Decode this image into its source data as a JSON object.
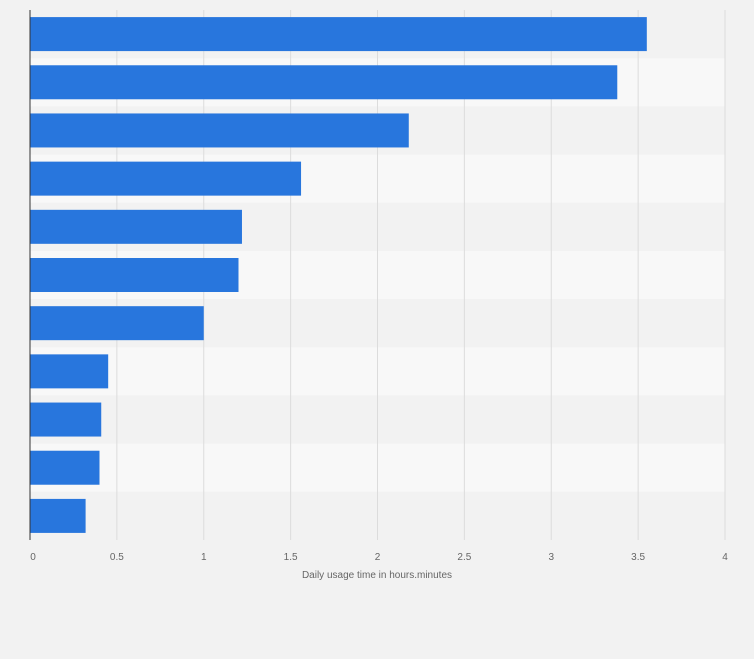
{
  "chart_data": {
    "type": "bar",
    "orientation": "horizontal",
    "title": "",
    "categories": [
      "",
      "",
      "",
      "",
      "",
      "",
      "",
      "",
      "",
      "",
      ""
    ],
    "values": [
      3.55,
      3.38,
      2.18,
      1.56,
      1.22,
      1.2,
      1.0,
      0.45,
      0.41,
      0.4,
      0.32
    ],
    "xlabel": "Daily usage time in hours.minutes",
    "ylabel": "",
    "xlim": [
      0,
      4
    ],
    "xticks": [
      "0",
      "0.5",
      "1",
      "1.5",
      "2",
      "2.5",
      "3",
      "3.5",
      "4"
    ],
    "xtick_values": [
      0,
      0.5,
      1,
      1.5,
      2,
      2.5,
      3,
      3.5,
      4
    ],
    "grid": true,
    "bar_color": "#2876dd",
    "background_color": "#f2f2f2",
    "band_colors": [
      "#f2f2f2",
      "#f8f8f8"
    ]
  }
}
